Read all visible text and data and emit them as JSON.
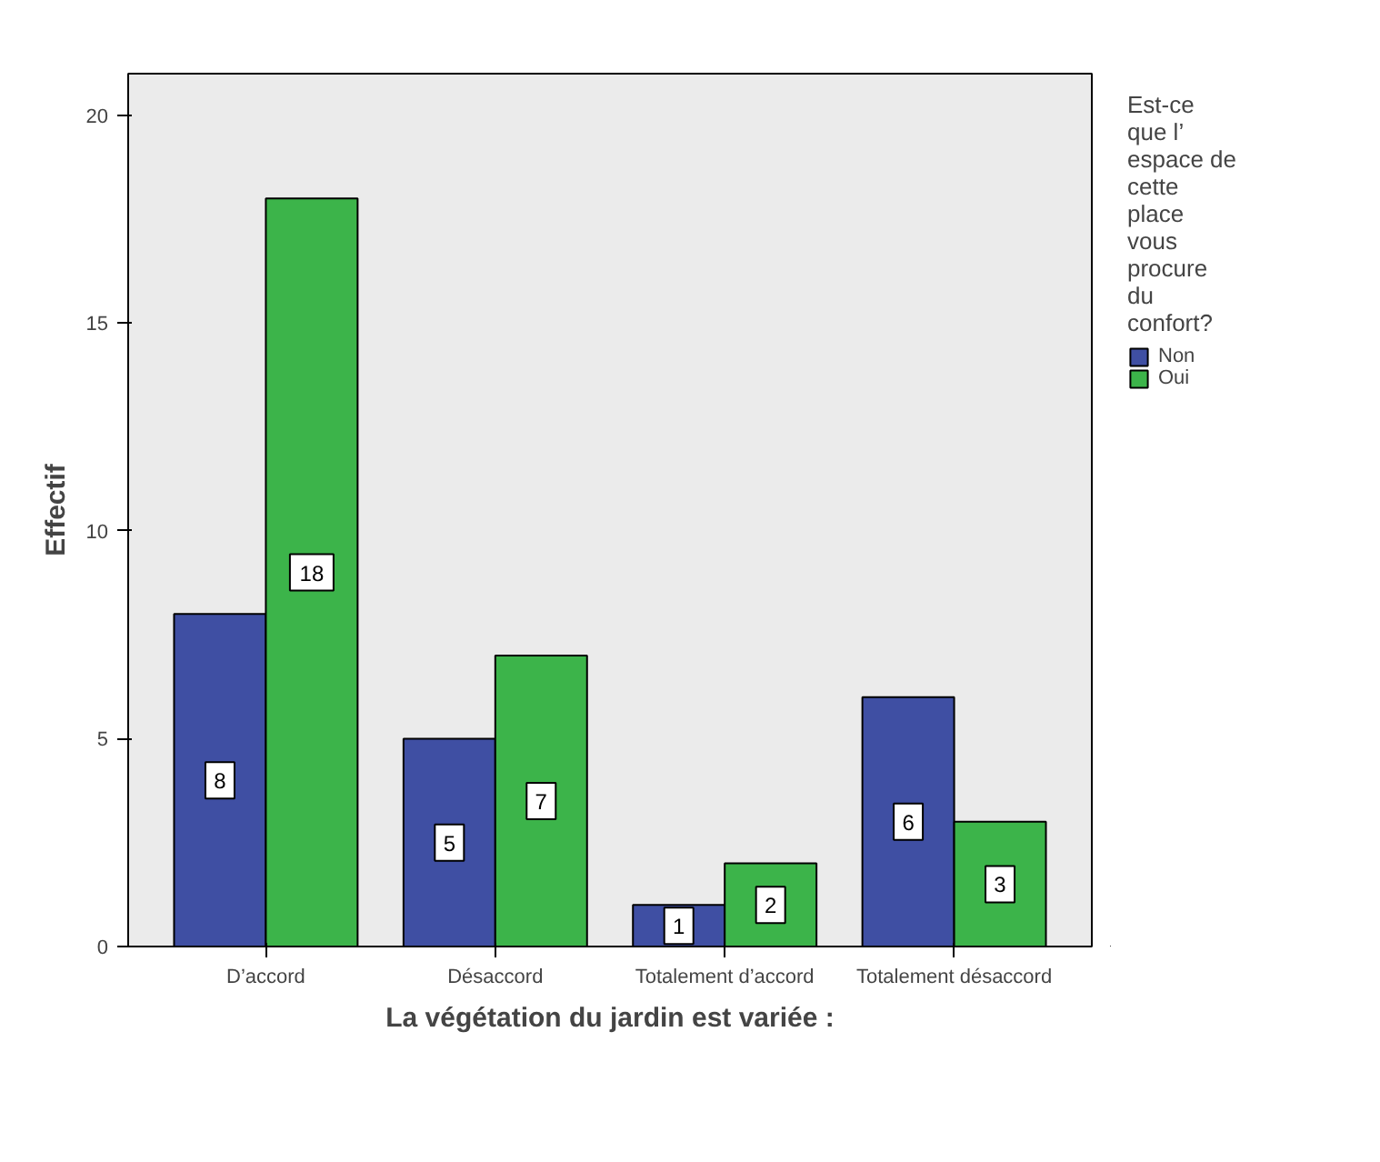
{
  "chart_data": {
    "type": "bar",
    "xlabel": "La végétation du jardin est variée :",
    "ylabel": "Effectif",
    "legend_title": "Est-ce que l’ espace de cette place vous procure du confort?",
    "categories": [
      "D’accord",
      "Désaccord",
      "Totalement d’accord",
      "Totalement désaccord"
    ],
    "series": [
      {
        "name": "Non",
        "color": "#3f4fa3",
        "values": [
          8,
          5,
          1,
          6
        ]
      },
      {
        "name": "Oui",
        "color": "#3cb44a",
        "values": [
          18,
          7,
          2,
          3
        ]
      }
    ],
    "ylim": [
      0,
      21
    ],
    "yticks": [
      0,
      5,
      10,
      15,
      20
    ],
    "grid": false,
    "legend": "right",
    "data_labels": true
  }
}
